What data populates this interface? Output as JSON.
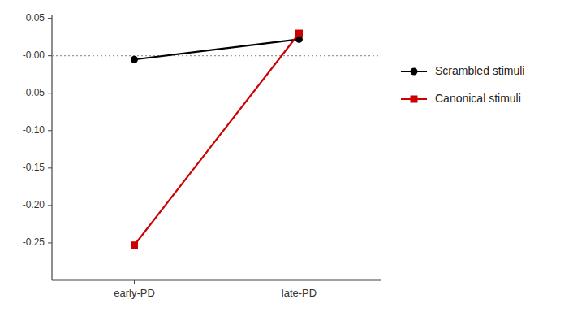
{
  "chart_data": {
    "type": "line",
    "categories": [
      "early-PD",
      "late-PD"
    ],
    "series": [
      {
        "name": "Scrambled stimuli",
        "color": "#000000",
        "marker": "circle",
        "values": [
          -0.005,
          0.022
        ]
      },
      {
        "name": "Canonical stimuli",
        "color": "#cc0000",
        "marker": "square",
        "values": [
          -0.253,
          0.03
        ]
      }
    ],
    "ylim": [
      -0.3,
      0.055
    ],
    "yticks": [
      0.05,
      {
        "value": 0,
        "label": "-0.00"
      },
      -0.05,
      {
        "value": -0.1,
        "label": "-0.10"
      },
      -0.15,
      {
        "value": -0.2,
        "label": "-0.20"
      },
      -0.25
    ],
    "reference_line": 0,
    "grid": false,
    "legend": "right"
  }
}
